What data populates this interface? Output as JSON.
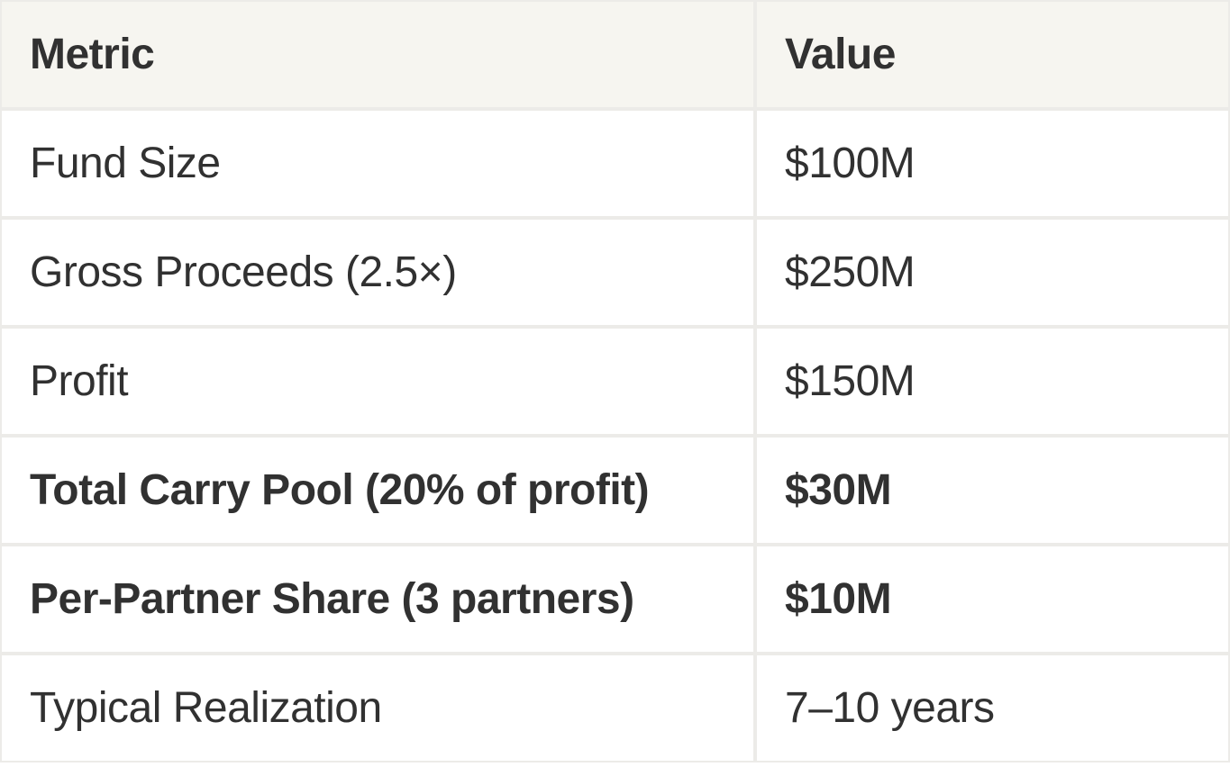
{
  "chart_data": {
    "type": "table",
    "columns": [
      "Metric",
      "Value"
    ],
    "rows": [
      {
        "metric": "Fund Size",
        "value": "$100M",
        "bold": false
      },
      {
        "metric": "Gross Proceeds (2.5×)",
        "value": "$250M",
        "bold": false
      },
      {
        "metric": "Profit",
        "value": "$150M",
        "bold": false
      },
      {
        "metric": "Total Carry Pool (20% of profit)",
        "value": "$30M",
        "bold": true
      },
      {
        "metric": "Per-Partner Share (3 partners)",
        "value": "$10M",
        "bold": true
      },
      {
        "metric": "Typical Realization",
        "value": "7–10 years",
        "bold": false
      }
    ]
  },
  "colors": {
    "header_bg": "#f6f5f0",
    "border": "#ecebe8",
    "text": "#313131",
    "row_bg": "#ffffff"
  }
}
